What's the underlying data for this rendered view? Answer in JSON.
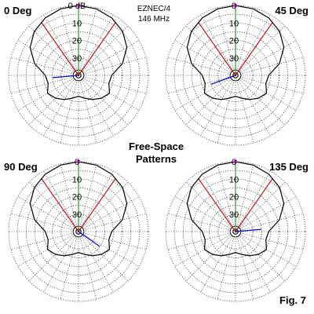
{
  "header": {
    "software": "EZNEC/4",
    "frequency": "146 MHz"
  },
  "center_title": {
    "line1": "Free-Space",
    "line2": "Patterns"
  },
  "figure_label": "Fig. 7",
  "colors": {
    "pattern": "#000000",
    "grid": "#000000",
    "axis_green": "#2a9d2a",
    "beamwidth_red": "#cc0000",
    "blue_line": "#0000cc",
    "marker_magenta": "#dd22dd"
  },
  "chart_data": [
    {
      "type": "polar",
      "title": "0 Deg",
      "ring_labels": [
        "0 dB",
        "10",
        "20",
        "30"
      ],
      "ring_values_db": [
        0,
        10,
        20,
        30
      ],
      "grid": true,
      "beamwidth_lines_deg": [
        -35,
        35
      ],
      "blue_line_angle_deg": 265,
      "pattern": {
        "angles_deg": [
          0,
          15,
          30,
          45,
          60,
          75,
          90,
          105,
          120,
          135,
          150,
          165,
          180,
          195,
          210,
          225,
          240,
          255,
          270,
          285,
          300,
          315,
          330,
          345
        ],
        "attenuation_db": [
          0,
          0.6,
          2.0,
          4.3,
          8.0,
          14.0,
          21.0,
          22.0,
          19.5,
          21.5,
          24.0,
          26.5,
          28.0,
          26.5,
          24.0,
          21.5,
          19.5,
          22.0,
          21.0,
          14.0,
          8.0,
          4.3,
          2.0,
          0.6
        ]
      }
    },
    {
      "type": "polar",
      "title": "45 Deg",
      "ring_labels": [
        "0",
        "10",
        "20",
        "30"
      ],
      "ring_values_db": [
        0,
        10,
        20,
        30
      ],
      "grid": true,
      "beamwidth_lines_deg": [
        -35,
        35
      ],
      "blue_line_angle_deg": 250,
      "pattern": {
        "angles_deg": [
          0,
          15,
          30,
          45,
          60,
          75,
          90,
          105,
          120,
          135,
          150,
          165,
          180,
          195,
          210,
          225,
          240,
          255,
          270,
          285,
          300,
          315,
          330,
          345
        ],
        "attenuation_db": [
          0,
          0.6,
          2.0,
          4.3,
          8.0,
          14.0,
          21.0,
          22.0,
          19.5,
          21.5,
          24.0,
          26.5,
          28.0,
          26.5,
          24.0,
          21.5,
          19.5,
          22.0,
          21.0,
          14.0,
          8.0,
          4.3,
          2.0,
          0.6
        ]
      }
    },
    {
      "type": "polar",
      "title": "90 Deg",
      "ring_labels": [
        "0",
        "10",
        "20",
        "30"
      ],
      "ring_values_db": [
        0,
        10,
        20,
        30
      ],
      "grid": true,
      "beamwidth_lines_deg": [
        -35,
        35
      ],
      "blue_line_angle_deg": 125,
      "pattern": {
        "angles_deg": [
          0,
          15,
          30,
          45,
          60,
          75,
          90,
          105,
          120,
          135,
          150,
          165,
          180,
          195,
          210,
          225,
          240,
          255,
          270,
          285,
          300,
          315,
          330,
          345
        ],
        "attenuation_db": [
          0,
          0.6,
          2.0,
          4.3,
          8.0,
          14.0,
          21.0,
          22.0,
          19.5,
          21.5,
          24.0,
          26.5,
          28.0,
          26.5,
          24.0,
          21.5,
          19.5,
          22.0,
          21.0,
          14.0,
          8.0,
          4.3,
          2.0,
          0.6
        ]
      }
    },
    {
      "type": "polar",
      "title": "135 Deg",
      "ring_labels": [
        "0",
        "10",
        "20",
        "30"
      ],
      "ring_values_db": [
        0,
        10,
        20,
        30
      ],
      "grid": true,
      "beamwidth_lines_deg": [
        -35,
        35
      ],
      "blue_line_angle_deg": 85,
      "pattern": {
        "angles_deg": [
          0,
          15,
          30,
          45,
          60,
          75,
          90,
          105,
          120,
          135,
          150,
          165,
          180,
          195,
          210,
          225,
          240,
          255,
          270,
          285,
          300,
          315,
          330,
          345
        ],
        "attenuation_db": [
          0,
          0.6,
          2.0,
          4.3,
          8.0,
          14.0,
          21.0,
          22.0,
          19.5,
          21.5,
          24.0,
          26.5,
          28.0,
          26.5,
          24.0,
          21.5,
          19.5,
          22.0,
          21.0,
          14.0,
          8.0,
          4.3,
          2.0,
          0.6
        ]
      }
    }
  ]
}
